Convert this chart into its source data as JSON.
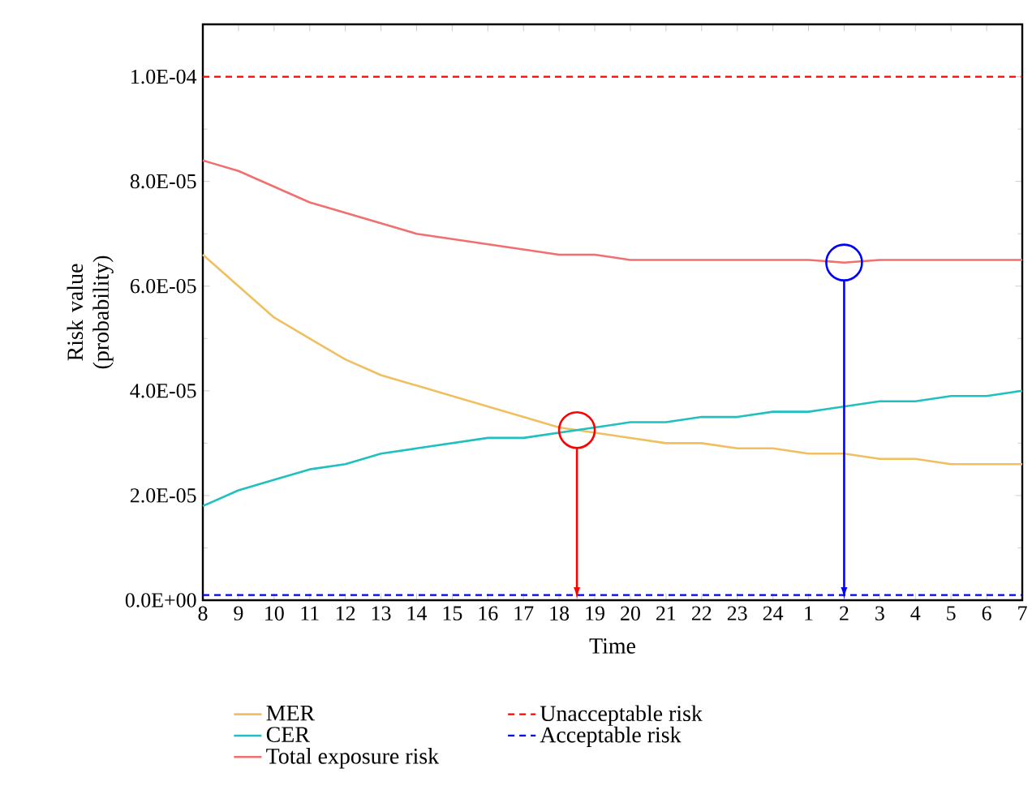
{
  "chart_data": {
    "type": "line",
    "xlabel": "Time",
    "ylabel": "Risk value (probability)",
    "categories": [
      "8",
      "9",
      "10",
      "11",
      "12",
      "13",
      "14",
      "15",
      "16",
      "17",
      "18",
      "19",
      "20",
      "21",
      "22",
      "23",
      "24",
      "1",
      "2",
      "3",
      "4",
      "5",
      "6",
      "7"
    ],
    "ylim": [
      0,
      0.00011
    ],
    "yticks": [
      {
        "value": 0,
        "label": "0.0E+00"
      },
      {
        "value": 2e-05,
        "label": "2.0E-05"
      },
      {
        "value": 4e-05,
        "label": "4.0E-05"
      },
      {
        "value": 6e-05,
        "label": "6.0E-05"
      },
      {
        "value": 8e-05,
        "label": "8.0E-05"
      },
      {
        "value": 0.0001,
        "label": "1.0E-04"
      }
    ],
    "series": [
      {
        "name": "MER",
        "color": "#f0c060",
        "values": [
          6.6e-05,
          6e-05,
          5.4e-05,
          5e-05,
          4.6e-05,
          4.3e-05,
          4.1e-05,
          3.9e-05,
          3.7e-05,
          3.5e-05,
          3.3e-05,
          3.2e-05,
          3.1e-05,
          3e-05,
          3e-05,
          2.9e-05,
          2.9e-05,
          2.8e-05,
          2.8e-05,
          2.7e-05,
          2.7e-05,
          2.6e-05,
          2.6e-05,
          2.6e-05
        ]
      },
      {
        "name": "CER",
        "color": "#20c0c0",
        "values": [
          1.8e-05,
          2.1e-05,
          2.3e-05,
          2.5e-05,
          2.6e-05,
          2.8e-05,
          2.9e-05,
          3e-05,
          3.1e-05,
          3.1e-05,
          3.2e-05,
          3.3e-05,
          3.4e-05,
          3.4e-05,
          3.5e-05,
          3.5e-05,
          3.6e-05,
          3.6e-05,
          3.7e-05,
          3.8e-05,
          3.8e-05,
          3.9e-05,
          3.9e-05,
          4e-05
        ]
      },
      {
        "name": "Total exposure risk",
        "color": "#f07070",
        "values": [
          8.4e-05,
          8.2e-05,
          7.9e-05,
          7.6e-05,
          7.4e-05,
          7.2e-05,
          7e-05,
          6.9e-05,
          6.8e-05,
          6.7e-05,
          6.6e-05,
          6.6e-05,
          6.5e-05,
          6.5e-05,
          6.5e-05,
          6.5e-05,
          6.5e-05,
          6.5e-05,
          6.45e-05,
          6.5e-05,
          6.5e-05,
          6.5e-05,
          6.5e-05,
          6.5e-05
        ]
      }
    ],
    "ref_lines": [
      {
        "axis": "y",
        "value": 0.0001,
        "label": "Unacceptable risk",
        "color": "#ff0000",
        "line_style": "dashed"
      },
      {
        "axis": "y",
        "value": 1e-06,
        "label": "Acceptable risk",
        "color": "#0000ff",
        "line_style": "dashed"
      }
    ],
    "legend": "bottom",
    "grid": false
  }
}
